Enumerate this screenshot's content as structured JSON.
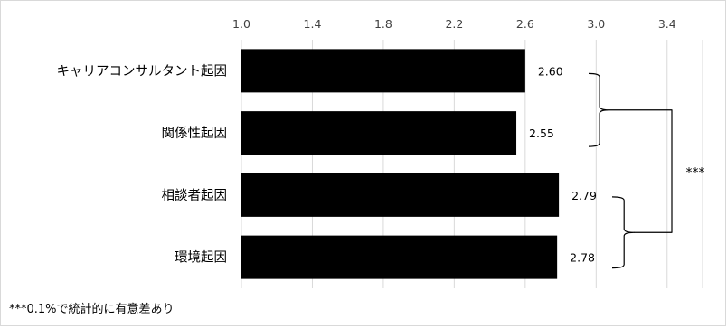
{
  "chart_data": {
    "type": "bar",
    "orientation": "horizontal",
    "categories": [
      "キャリアコンサルタント起因",
      "関係性起因",
      "相談者起因",
      "環境起因"
    ],
    "values": [
      2.6,
      2.55,
      2.79,
      2.78
    ],
    "data_labels": [
      "2.60",
      "2.55",
      "2.79",
      "2.78"
    ],
    "x_ticks": [
      "1.0",
      "1.4",
      "1.8",
      "2.2",
      "2.6",
      "3.0",
      "3.4"
    ],
    "xlim": [
      1.0,
      3.6
    ],
    "x_axis_position": "top",
    "grid": true,
    "bar_color": "#000000",
    "significance": {
      "marker": "***",
      "compares": [
        [
          "キャリアコンサルタント起因",
          "関係性起因"
        ],
        [
          "相談者起因",
          "環境起因"
        ]
      ]
    },
    "footnote": "***0.1%で統計的に有意差あり"
  }
}
